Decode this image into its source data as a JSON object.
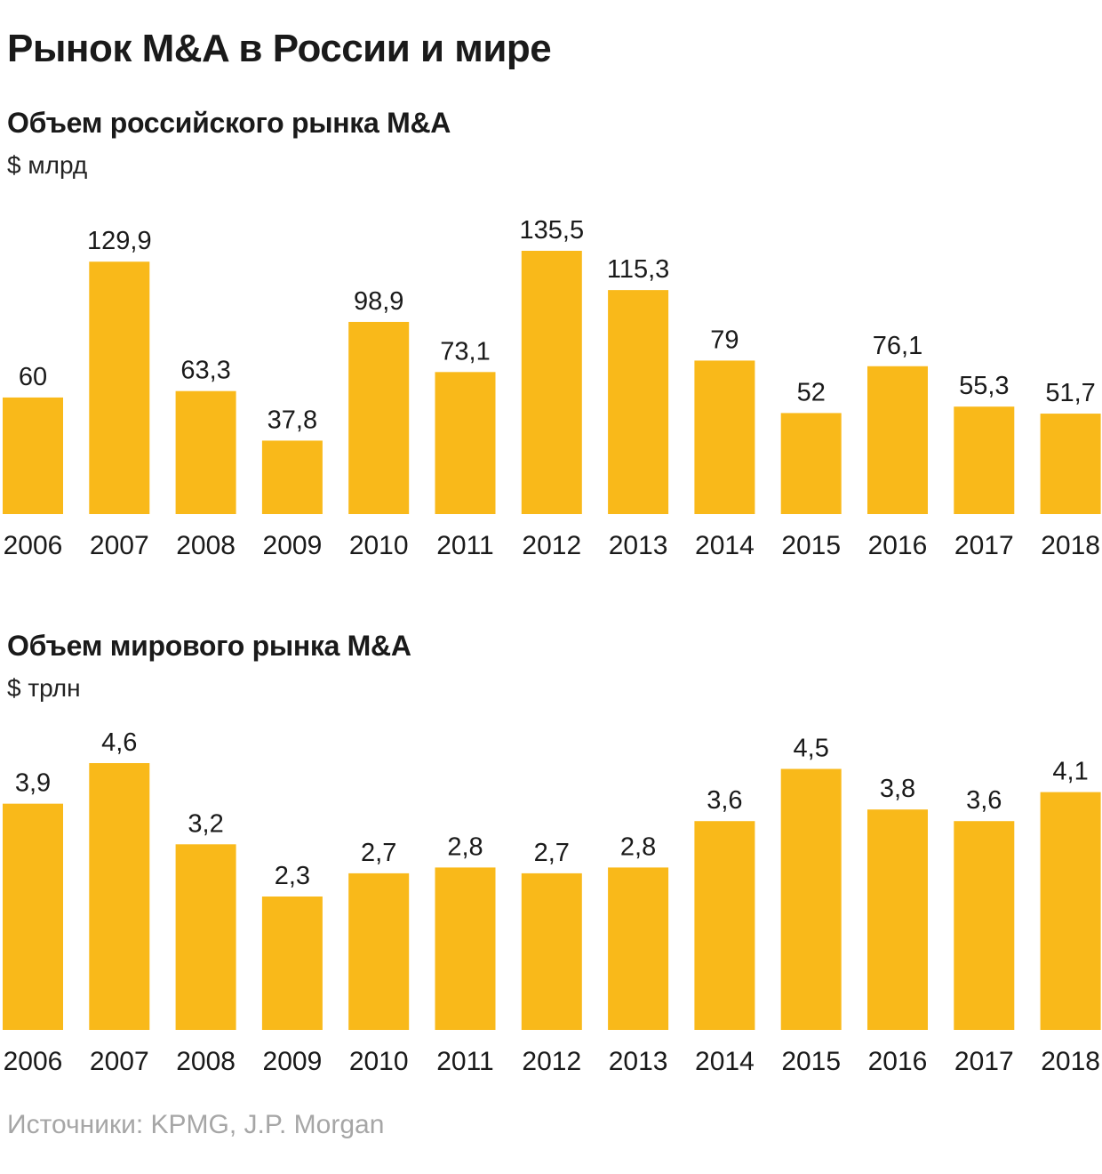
{
  "title": "Рынок M&A в России и мире",
  "source": "Источники: KPMG, J.P. Morgan",
  "colors": {
    "bar": "#F9B91A",
    "text": "#1a1a1a",
    "source": "#a6a6a6"
  },
  "chart_data": [
    {
      "type": "bar",
      "title": "Объем российского рынка M&A",
      "unit": "$ млрд",
      "categories": [
        "2006",
        "2007",
        "2008",
        "2009",
        "2010",
        "2011",
        "2012",
        "2013",
        "2014",
        "2015",
        "2016",
        "2017",
        "2018"
      ],
      "values": [
        60,
        129.9,
        63.3,
        37.8,
        98.9,
        73.1,
        135.5,
        115.3,
        79,
        52,
        76.1,
        55.3,
        51.7
      ],
      "value_labels": [
        "60",
        "129,9",
        "63,3",
        "37,8",
        "98,9",
        "73,1",
        "135,5",
        "115,3",
        "79",
        "52",
        "76,1",
        "55,3",
        "51,7"
      ],
      "ylim": [
        0,
        135.5
      ],
      "grid": false,
      "legend": "none"
    },
    {
      "type": "bar",
      "title": "Объем мирового рынка M&A",
      "unit": "$ трлн",
      "categories": [
        "2006",
        "2007",
        "2008",
        "2009",
        "2010",
        "2011",
        "2012",
        "2013",
        "2014",
        "2015",
        "2016",
        "2017",
        "2018"
      ],
      "values": [
        3.9,
        4.6,
        3.2,
        2.3,
        2.7,
        2.8,
        2.7,
        2.8,
        3.6,
        4.5,
        3.8,
        3.6,
        4.1
      ],
      "value_labels": [
        "3,9",
        "4,6",
        "3,2",
        "2,3",
        "2,7",
        "2,8",
        "2,7",
        "2,8",
        "3,6",
        "4,5",
        "3,8",
        "3,6",
        "4,1"
      ],
      "ylim": [
        0,
        4.6
      ],
      "grid": false,
      "legend": "none"
    }
  ]
}
